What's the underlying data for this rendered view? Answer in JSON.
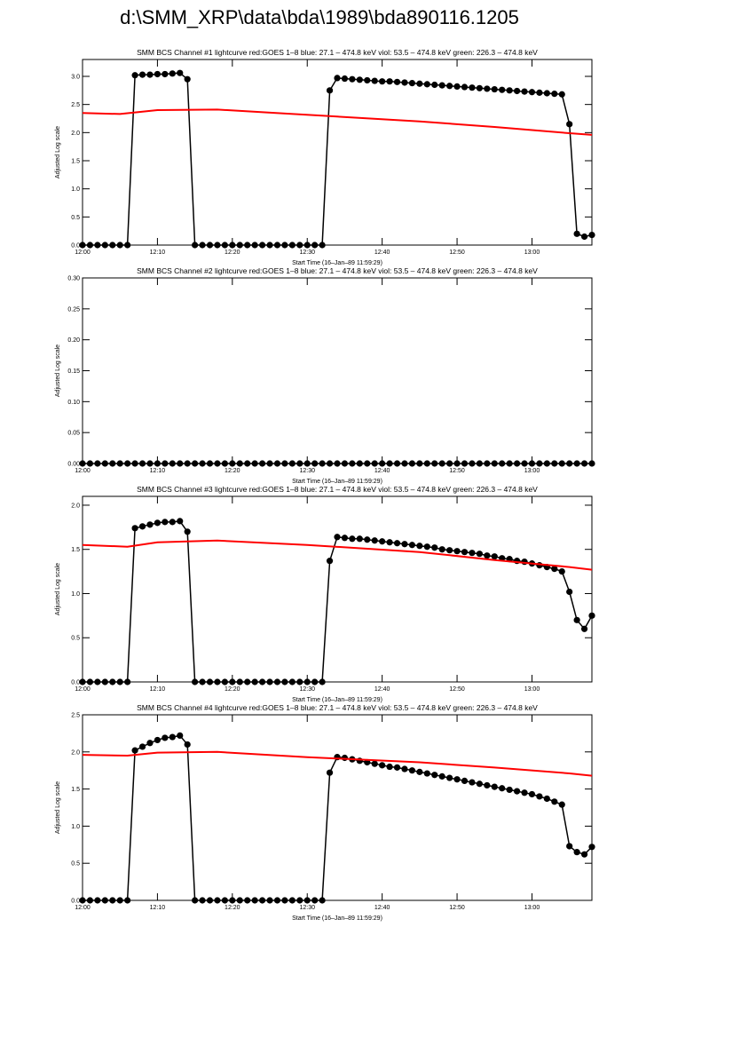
{
  "title": "d:\\SMM_XRP\\data\\bda\\1989\\bda890116.1205",
  "chart_data": [
    {
      "type": "line",
      "title": "SMM BCS Channel #1 lightcurve  red:GOES 1–8  blue: 27.1 – 474.8 keV  viol: 53.5 – 474.8 keV  green: 226.3 – 474.8 keV",
      "x_label": "Start Time (16–Jan–89 11:59:29)",
      "y_label": "Adjusted Log scale",
      "xlim": [
        "12:00",
        "13:08"
      ],
      "xticks": [
        "12:00",
        "12:10",
        "12:20",
        "12:30",
        "12:40",
        "12:50",
        "13:00"
      ],
      "ylim": [
        0,
        3.3
      ],
      "yticks": [
        {
          "value": 0,
          "label": "0.0"
        },
        0.5,
        {
          "value": 1,
          "label": "1.0"
        },
        1.5,
        {
          "value": 2,
          "label": "2.0"
        },
        2.5,
        {
          "value": 3,
          "label": "3.0"
        }
      ],
      "x": [
        "12:00",
        "12:01",
        "12:02",
        "12:03",
        "12:04",
        "12:05",
        "12:06",
        "12:07",
        "12:08",
        "12:09",
        "12:10",
        "12:11",
        "12:12",
        "12:13",
        "12:14",
        "12:15",
        "12:16",
        "12:17",
        "12:18",
        "12:19",
        "12:20",
        "12:21",
        "12:22",
        "12:23",
        "12:24",
        "12:25",
        "12:26",
        "12:27",
        "12:28",
        "12:29",
        "12:30",
        "12:31",
        "12:32",
        "12:33",
        "12:34",
        "12:35",
        "12:36",
        "12:37",
        "12:38",
        "12:39",
        "12:40",
        "12:41",
        "12:42",
        "12:43",
        "12:44",
        "12:45",
        "12:46",
        "12:47",
        "12:48",
        "12:49",
        "12:50",
        "12:51",
        "12:52",
        "12:53",
        "12:54",
        "12:55",
        "12:56",
        "12:57",
        "12:58",
        "12:59",
        "13:00",
        "13:01",
        "13:02",
        "13:03",
        "13:04",
        "13:05",
        "13:06",
        "13:07",
        "13:08"
      ],
      "series": [
        {
          "color": "#000000",
          "markers": true,
          "values": [
            0,
            0,
            0,
            0,
            0,
            0,
            0,
            3.02,
            3.03,
            3.03,
            3.04,
            3.04,
            3.05,
            3.06,
            2.95,
            0,
            0,
            0,
            0,
            0,
            0,
            0,
            0,
            0,
            0,
            0,
            0,
            0,
            0,
            0,
            0,
            0,
            0,
            2.75,
            2.97,
            2.96,
            2.95,
            2.94,
            2.93,
            2.92,
            2.91,
            2.91,
            2.9,
            2.89,
            2.88,
            2.87,
            2.86,
            2.85,
            2.84,
            2.83,
            2.82,
            2.81,
            2.8,
            2.79,
            2.78,
            2.77,
            2.76,
            2.75,
            2.74,
            2.73,
            2.72,
            2.71,
            2.7,
            2.69,
            2.68,
            2.15,
            0.2,
            0.15,
            0.18
          ]
        },
        {
          "color": "#ff0000",
          "markers": false,
          "x": [
            "12:00",
            "12:05",
            "12:10",
            "12:18",
            "12:32",
            "12:45",
            "12:55",
            "13:05",
            "13:08"
          ],
          "values": [
            2.35,
            2.33,
            2.4,
            2.41,
            2.3,
            2.2,
            2.1,
            1.99,
            1.96
          ]
        }
      ]
    },
    {
      "type": "line",
      "title": "SMM BCS Channel #2 lightcurve  red:GOES 1–8  blue: 27.1 – 474.8 keV  viol: 53.5 – 474.8 keV  green: 226.3 – 474.8 keV",
      "x_label": "Start Time (16–Jan–89 11:59:29)",
      "y_label": "Adjusted Log scale",
      "xlim": [
        "12:00",
        "13:08"
      ],
      "xticks": [
        "12:00",
        "12:10",
        "12:20",
        "12:30",
        "12:40",
        "12:50",
        "13:00"
      ],
      "ylim": [
        0,
        0.3
      ],
      "yticks": [
        {
          "value": 0,
          "label": "0.00"
        },
        0.05,
        {
          "value": 0.1,
          "label": "0.10"
        },
        0.15,
        {
          "value": 0.2,
          "label": "0.20"
        },
        0.25,
        {
          "value": 0.3,
          "label": "0.30"
        }
      ],
      "x": [
        "12:00",
        "12:01",
        "12:02",
        "12:03",
        "12:04",
        "12:05",
        "12:06",
        "12:07",
        "12:08",
        "12:09",
        "12:10",
        "12:11",
        "12:12",
        "12:13",
        "12:14",
        "12:15",
        "12:16",
        "12:17",
        "12:18",
        "12:19",
        "12:20",
        "12:21",
        "12:22",
        "12:23",
        "12:24",
        "12:25",
        "12:26",
        "12:27",
        "12:28",
        "12:29",
        "12:30",
        "12:31",
        "12:32",
        "12:33",
        "12:34",
        "12:35",
        "12:36",
        "12:37",
        "12:38",
        "12:39",
        "12:40",
        "12:41",
        "12:42",
        "12:43",
        "12:44",
        "12:45",
        "12:46",
        "12:47",
        "12:48",
        "12:49",
        "12:50",
        "12:51",
        "12:52",
        "12:53",
        "12:54",
        "12:55",
        "12:56",
        "12:57",
        "12:58",
        "12:59",
        "13:00",
        "13:01",
        "13:02",
        "13:03",
        "13:04",
        "13:05",
        "13:06",
        "13:07",
        "13:08"
      ],
      "series": [
        {
          "color": "#000000",
          "markers": true,
          "values": [
            0,
            0,
            0,
            0,
            0,
            0,
            0,
            0,
            0,
            0,
            0,
            0,
            0,
            0,
            0,
            0,
            0,
            0,
            0,
            0,
            0,
            0,
            0,
            0,
            0,
            0,
            0,
            0,
            0,
            0,
            0,
            0,
            0,
            0,
            0,
            0,
            0,
            0,
            0,
            0,
            0,
            0,
            0,
            0,
            0,
            0,
            0,
            0,
            0,
            0,
            0,
            0,
            0,
            0,
            0,
            0,
            0,
            0,
            0,
            0,
            0,
            0,
            0,
            0,
            0,
            0,
            0,
            0,
            0
          ]
        }
      ]
    },
    {
      "type": "line",
      "title": "SMM BCS Channel #3 lightcurve  red:GOES 1–8  blue: 27.1 – 474.8 keV  viol: 53.5 – 474.8 keV  green: 226.3 – 474.8 keV",
      "x_label": "Start Time (16–Jan–89 11:59:29)",
      "y_label": "Adjusted Log scale",
      "xlim": [
        "12:00",
        "13:08"
      ],
      "xticks": [
        "12:00",
        "12:10",
        "12:20",
        "12:30",
        "12:40",
        "12:50",
        "13:00"
      ],
      "ylim": [
        0,
        2.1
      ],
      "yticks": [
        {
          "value": 0,
          "label": "0.0"
        },
        0.5,
        {
          "value": 1,
          "label": "1.0"
        },
        1.5,
        {
          "value": 2,
          "label": "2.0"
        }
      ],
      "x": [
        "12:00",
        "12:01",
        "12:02",
        "12:03",
        "12:04",
        "12:05",
        "12:06",
        "12:07",
        "12:08",
        "12:09",
        "12:10",
        "12:11",
        "12:12",
        "12:13",
        "12:14",
        "12:15",
        "12:16",
        "12:17",
        "12:18",
        "12:19",
        "12:20",
        "12:21",
        "12:22",
        "12:23",
        "12:24",
        "12:25",
        "12:26",
        "12:27",
        "12:28",
        "12:29",
        "12:30",
        "12:31",
        "12:32",
        "12:33",
        "12:34",
        "12:35",
        "12:36",
        "12:37",
        "12:38",
        "12:39",
        "12:40",
        "12:41",
        "12:42",
        "12:43",
        "12:44",
        "12:45",
        "12:46",
        "12:47",
        "12:48",
        "12:49",
        "12:50",
        "12:51",
        "12:52",
        "12:53",
        "12:54",
        "12:55",
        "12:56",
        "12:57",
        "12:58",
        "12:59",
        "13:00",
        "13:01",
        "13:02",
        "13:03",
        "13:04",
        "13:05",
        "13:06",
        "13:07",
        "13:08"
      ],
      "series": [
        {
          "color": "#000000",
          "markers": true,
          "values": [
            0,
            0,
            0,
            0,
            0,
            0,
            0,
            1.74,
            1.76,
            1.78,
            1.8,
            1.81,
            1.81,
            1.82,
            1.7,
            0,
            0,
            0,
            0,
            0,
            0,
            0,
            0,
            0,
            0,
            0,
            0,
            0,
            0,
            0,
            0,
            0,
            0,
            1.37,
            1.64,
            1.63,
            1.62,
            1.62,
            1.61,
            1.6,
            1.59,
            1.58,
            1.57,
            1.56,
            1.55,
            1.54,
            1.53,
            1.52,
            1.5,
            1.49,
            1.48,
            1.47,
            1.46,
            1.45,
            1.43,
            1.42,
            1.4,
            1.39,
            1.37,
            1.36,
            1.34,
            1.32,
            1.3,
            1.28,
            1.25,
            1.02,
            0.7,
            0.6,
            0.75
          ]
        },
        {
          "color": "#ff0000",
          "markers": false,
          "x": [
            "12:00",
            "12:06",
            "12:10",
            "12:18",
            "12:30",
            "12:45",
            "12:55",
            "13:05",
            "13:08"
          ],
          "values": [
            1.55,
            1.53,
            1.58,
            1.6,
            1.55,
            1.47,
            1.38,
            1.3,
            1.27
          ]
        }
      ]
    },
    {
      "type": "line",
      "title": "SMM BCS Channel #4 lightcurve  red:GOES 1–8  blue: 27.1 – 474.8 keV  viol: 53.5 – 474.8 keV  green: 226.3 – 474.8 keV",
      "x_label": "Start Time (16–Jan–89 11:59:29)",
      "y_label": "Adjusted Log scale",
      "xlim": [
        "12:00",
        "13:08"
      ],
      "xticks": [
        "12:00",
        "12:10",
        "12:20",
        "12:30",
        "12:40",
        "12:50",
        "13:00"
      ],
      "ylim": [
        0,
        2.5
      ],
      "yticks": [
        {
          "value": 0,
          "label": "0.0"
        },
        0.5,
        {
          "value": 1,
          "label": "1.0"
        },
        1.5,
        {
          "value": 2,
          "label": "2.0"
        },
        2.5
      ],
      "x": [
        "12:00",
        "12:01",
        "12:02",
        "12:03",
        "12:04",
        "12:05",
        "12:06",
        "12:07",
        "12:08",
        "12:09",
        "12:10",
        "12:11",
        "12:12",
        "12:13",
        "12:14",
        "12:15",
        "12:16",
        "12:17",
        "12:18",
        "12:19",
        "12:20",
        "12:21",
        "12:22",
        "12:23",
        "12:24",
        "12:25",
        "12:26",
        "12:27",
        "12:28",
        "12:29",
        "12:30",
        "12:31",
        "12:32",
        "12:33",
        "12:34",
        "12:35",
        "12:36",
        "12:37",
        "12:38",
        "12:39",
        "12:40",
        "12:41",
        "12:42",
        "12:43",
        "12:44",
        "12:45",
        "12:46",
        "12:47",
        "12:48",
        "12:49",
        "12:50",
        "12:51",
        "12:52",
        "12:53",
        "12:54",
        "12:55",
        "12:56",
        "12:57",
        "12:58",
        "12:59",
        "13:00",
        "13:01",
        "13:02",
        "13:03",
        "13:04",
        "13:05",
        "13:06",
        "13:07",
        "13:08"
      ],
      "series": [
        {
          "color": "#000000",
          "markers": true,
          "values": [
            0,
            0,
            0,
            0,
            0,
            0,
            0,
            2.02,
            2.07,
            2.12,
            2.16,
            2.19,
            2.2,
            2.22,
            2.1,
            0,
            0,
            0,
            0,
            0,
            0,
            0,
            0,
            0,
            0,
            0,
            0,
            0,
            0,
            0,
            0,
            0,
            0,
            1.72,
            1.93,
            1.92,
            1.9,
            1.88,
            1.86,
            1.84,
            1.82,
            1.8,
            1.79,
            1.77,
            1.75,
            1.73,
            1.71,
            1.69,
            1.67,
            1.65,
            1.63,
            1.61,
            1.59,
            1.57,
            1.55,
            1.53,
            1.51,
            1.49,
            1.47,
            1.45,
            1.43,
            1.4,
            1.37,
            1.33,
            1.29,
            0.73,
            0.65,
            0.62,
            0.72
          ]
        },
        {
          "color": "#ff0000",
          "markers": false,
          "x": [
            "12:00",
            "12:06",
            "12:10",
            "12:18",
            "12:30",
            "12:45",
            "12:55",
            "13:05",
            "13:08"
          ],
          "values": [
            1.96,
            1.95,
            1.99,
            2.0,
            1.93,
            1.86,
            1.79,
            1.71,
            1.68
          ]
        }
      ]
    }
  ]
}
